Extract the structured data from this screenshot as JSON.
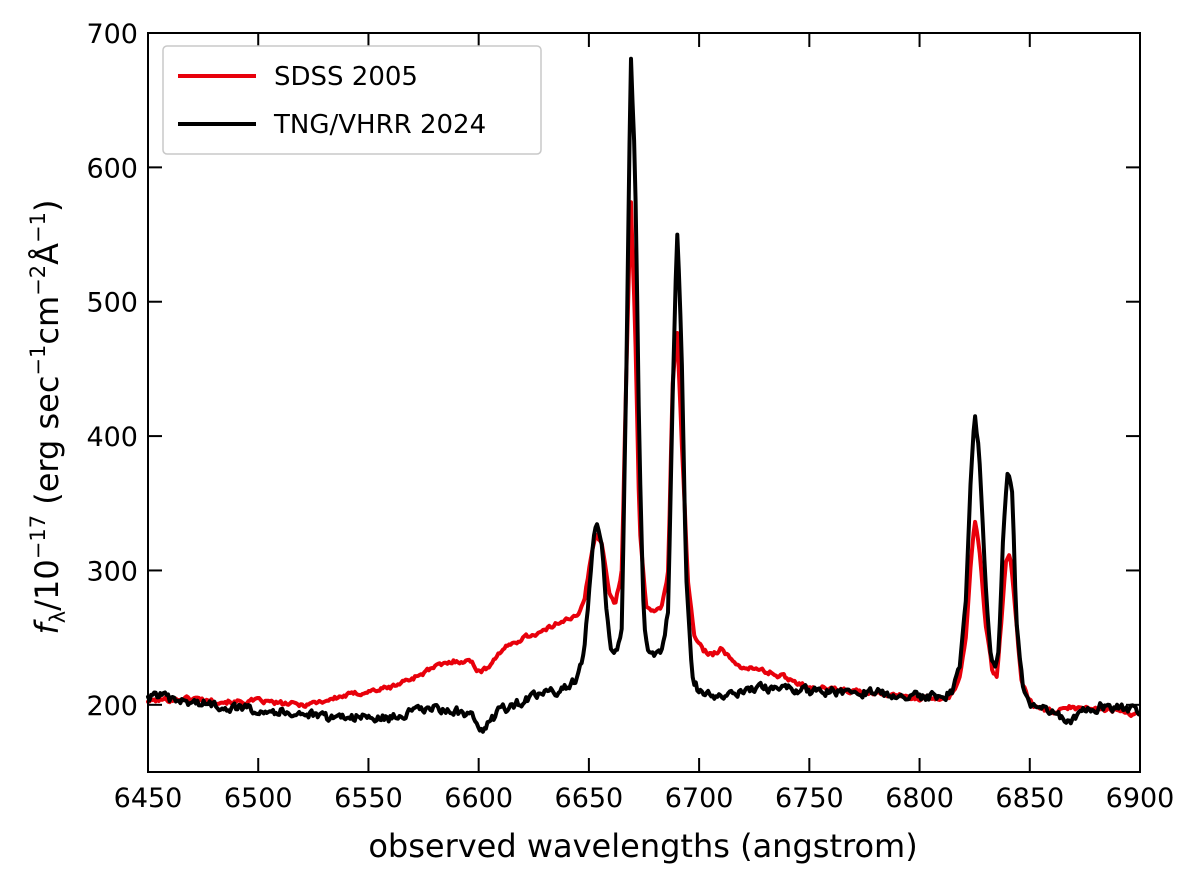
{
  "chart_data": {
    "type": "line",
    "xlabel": "observed wavelengths (angstrom)",
    "ylabel": {
      "prefix": "f",
      "sub": "λ",
      "mid1": "/10",
      "exp1": "−17",
      "mid2": " (erg sec",
      "exp2": "−1",
      "mid3": "cm",
      "exp3": "−2",
      "mid4": "Å",
      "exp4": "−1",
      "suffix": ")"
    },
    "xlim": [
      6450,
      6900
    ],
    "ylim": [
      150,
      700
    ],
    "xticks": [
      6450,
      6500,
      6550,
      6600,
      6650,
      6700,
      6750,
      6800,
      6850,
      6900
    ],
    "yticks": [
      200,
      300,
      400,
      500,
      600,
      700
    ],
    "legend_position": "top-left",
    "series": [
      {
        "name": "SDSS 2005",
        "color": "#e8000b",
        "points": [
          [
            6450,
            203
          ],
          [
            6460,
            204
          ],
          [
            6470,
            205
          ],
          [
            6480,
            203
          ],
          [
            6490,
            202
          ],
          [
            6500,
            203
          ],
          [
            6510,
            201
          ],
          [
            6520,
            200
          ],
          [
            6530,
            203
          ],
          [
            6540,
            207
          ],
          [
            6550,
            210
          ],
          [
            6560,
            213
          ],
          [
            6570,
            220
          ],
          [
            6580,
            228
          ],
          [
            6590,
            233
          ],
          [
            6597,
            232
          ],
          [
            6600,
            225
          ],
          [
            6603,
            226
          ],
          [
            6610,
            240
          ],
          [
            6620,
            250
          ],
          [
            6630,
            255
          ],
          [
            6640,
            265
          ],
          [
            6645,
            265
          ],
          [
            6648,
            278
          ],
          [
            6650,
            300
          ],
          [
            6653,
            328
          ],
          [
            6656,
            320
          ],
          [
            6659,
            285
          ],
          [
            6662,
            275
          ],
          [
            6665,
            300
          ],
          [
            6667,
            450
          ],
          [
            6669,
            578
          ],
          [
            6671,
            480
          ],
          [
            6673,
            330
          ],
          [
            6676,
            275
          ],
          [
            6680,
            268
          ],
          [
            6683,
            272
          ],
          [
            6686,
            300
          ],
          [
            6688,
            440
          ],
          [
            6690,
            482
          ],
          [
            6692,
            400
          ],
          [
            6695,
            290
          ],
          [
            6698,
            250
          ],
          [
            6702,
            240
          ],
          [
            6706,
            238
          ],
          [
            6710,
            242
          ],
          [
            6715,
            232
          ],
          [
            6720,
            228
          ],
          [
            6730,
            225
          ],
          [
            6740,
            220
          ],
          [
            6750,
            213
          ],
          [
            6760,
            212
          ],
          [
            6770,
            210
          ],
          [
            6780,
            208
          ],
          [
            6790,
            207
          ],
          [
            6800,
            205
          ],
          [
            6810,
            205
          ],
          [
            6815,
            208
          ],
          [
            6818,
            220
          ],
          [
            6821,
            250
          ],
          [
            6823,
            300
          ],
          [
            6825,
            338
          ],
          [
            6827,
            320
          ],
          [
            6830,
            260
          ],
          [
            6833,
            225
          ],
          [
            6835,
            220
          ],
          [
            6837,
            260
          ],
          [
            6839,
            305
          ],
          [
            6841,
            312
          ],
          [
            6843,
            280
          ],
          [
            6846,
            220
          ],
          [
            6849,
            205
          ],
          [
            6852,
            200
          ],
          [
            6858,
            195
          ],
          [
            6863,
            195
          ],
          [
            6868,
            198
          ],
          [
            6875,
            197
          ],
          [
            6882,
            197
          ],
          [
            6890,
            196
          ],
          [
            6900,
            192
          ]
        ]
      },
      {
        "name": "TNG/VHRR 2024",
        "color": "#000000",
        "points": [
          [
            6450,
            205
          ],
          [
            6455,
            208
          ],
          [
            6460,
            203
          ],
          [
            6470,
            202
          ],
          [
            6480,
            200
          ],
          [
            6490,
            198
          ],
          [
            6500,
            197
          ],
          [
            6510,
            195
          ],
          [
            6520,
            194
          ],
          [
            6530,
            190
          ],
          [
            6540,
            192
          ],
          [
            6550,
            190
          ],
          [
            6560,
            190
          ],
          [
            6570,
            195
          ],
          [
            6580,
            197
          ],
          [
            6590,
            195
          ],
          [
            6597,
            190
          ],
          [
            6600,
            180
          ],
          [
            6603,
            184
          ],
          [
            6610,
            196
          ],
          [
            6620,
            203
          ],
          [
            6630,
            208
          ],
          [
            6640,
            213
          ],
          [
            6645,
            220
          ],
          [
            6648,
            240
          ],
          [
            6650,
            280
          ],
          [
            6652,
            325
          ],
          [
            6654,
            336
          ],
          [
            6656,
            320
          ],
          [
            6658,
            270
          ],
          [
            6660,
            240
          ],
          [
            6663,
            237
          ],
          [
            6665,
            260
          ],
          [
            6667,
            450
          ],
          [
            6669,
            686
          ],
          [
            6671,
            600
          ],
          [
            6673,
            380
          ],
          [
            6675,
            260
          ],
          [
            6677,
            238
          ],
          [
            6680,
            238
          ],
          [
            6683,
            240
          ],
          [
            6686,
            270
          ],
          [
            6688,
            430
          ],
          [
            6690,
            556
          ],
          [
            6692,
            470
          ],
          [
            6694,
            300
          ],
          [
            6697,
            220
          ],
          [
            6700,
            210
          ],
          [
            6705,
            207
          ],
          [
            6710,
            206
          ],
          [
            6720,
            209
          ],
          [
            6730,
            213
          ],
          [
            6740,
            212
          ],
          [
            6750,
            210
          ],
          [
            6760,
            210
          ],
          [
            6770,
            210
          ],
          [
            6780,
            209
          ],
          [
            6790,
            208
          ],
          [
            6800,
            206
          ],
          [
            6810,
            206
          ],
          [
            6815,
            210
          ],
          [
            6818,
            225
          ],
          [
            6821,
            280
          ],
          [
            6823,
            360
          ],
          [
            6825,
            414
          ],
          [
            6827,
            390
          ],
          [
            6830,
            290
          ],
          [
            6832,
            238
          ],
          [
            6834,
            228
          ],
          [
            6836,
            245
          ],
          [
            6838,
            330
          ],
          [
            6840,
            377
          ],
          [
            6842,
            360
          ],
          [
            6844,
            260
          ],
          [
            6847,
            213
          ],
          [
            6850,
            200
          ],
          [
            6855,
            197
          ],
          [
            6862,
            193
          ],
          [
            6868,
            187
          ],
          [
            6875,
            196
          ],
          [
            6882,
            199
          ],
          [
            6890,
            198
          ],
          [
            6900,
            195
          ]
        ]
      }
    ]
  }
}
